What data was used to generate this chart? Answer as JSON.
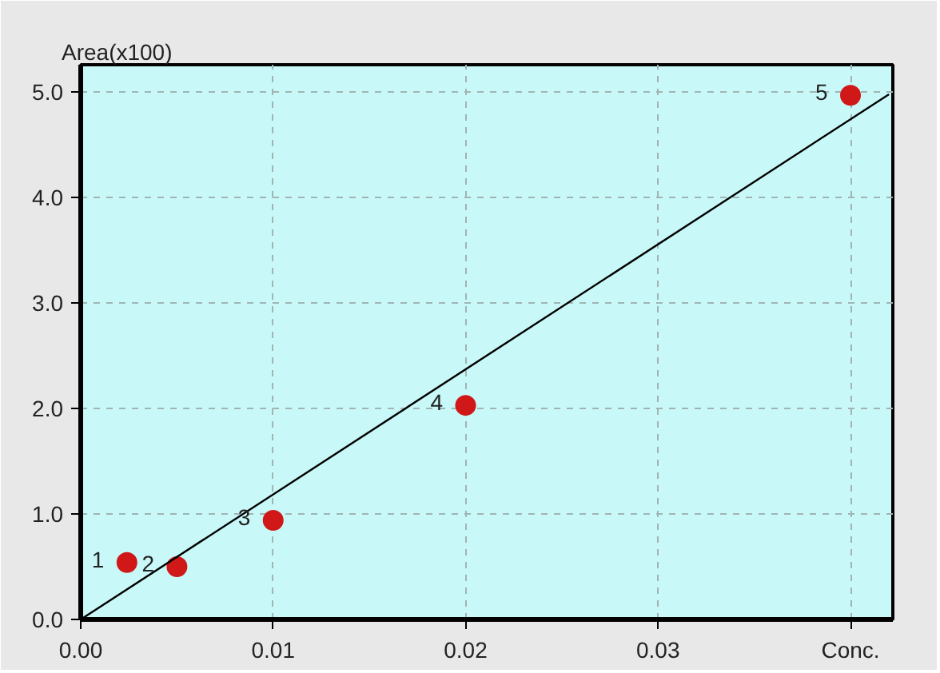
{
  "chart_data": {
    "type": "scatter",
    "ylabel": "Area(x100)",
    "xlim": [
      0,
      0.0422
    ],
    "ylim": [
      0,
      5.26
    ],
    "xticks": [
      {
        "value": 0,
        "label": "0.00"
      },
      {
        "value": 0.01,
        "label": "0.01"
      },
      {
        "value": 0.02,
        "label": "0.02"
      },
      {
        "value": 0.03,
        "label": "0.03"
      },
      {
        "value": 0.04,
        "label": "Conc."
      }
    ],
    "yticks": [
      {
        "value": 0,
        "label": "0.0"
      },
      {
        "value": 1,
        "label": "1.0"
      },
      {
        "value": 2,
        "label": "2.0"
      },
      {
        "value": 3,
        "label": "3.0"
      },
      {
        "value": 4,
        "label": "4.0"
      },
      {
        "value": 5,
        "label": "5.0"
      }
    ],
    "grid": true,
    "marker": "circle",
    "series": [
      {
        "color": "#d01818",
        "x": [
          0.0024,
          0.005,
          0.01,
          0.02,
          0.04
        ],
        "values": [
          0.54,
          0.5,
          0.94,
          2.03,
          4.97
        ]
      },
      {
        "type": "line",
        "color": "#000000",
        "x": [
          0,
          0.042
        ],
        "values": [
          0,
          4.98
        ],
        "marker": "none"
      }
    ],
    "annotations": [
      {
        "text": "1",
        "x": 0.0024,
        "y": 0.54
      },
      {
        "text": "2",
        "x": 0.005,
        "y": 0.5
      },
      {
        "text": "3",
        "x": 0.01,
        "y": 0.94
      },
      {
        "text": "4",
        "x": 0.02,
        "y": 2.03
      },
      {
        "text": "5",
        "x": 0.04,
        "y": 4.97
      }
    ]
  }
}
